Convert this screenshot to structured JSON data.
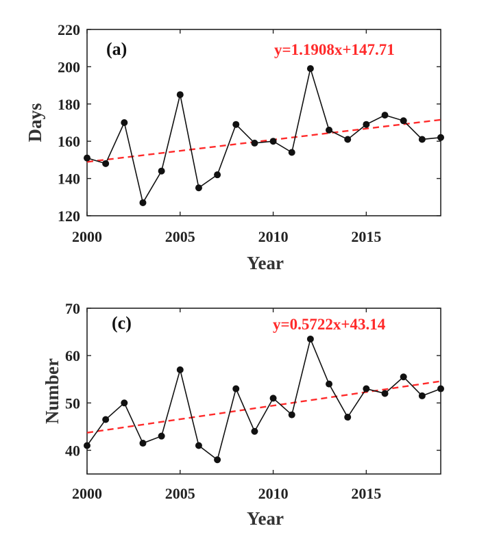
{
  "chart_data": [
    {
      "type": "line",
      "panel_label": "(a)",
      "xlabel": "Year",
      "ylabel": "Days",
      "xlim": [
        2000,
        2019
      ],
      "ylim": [
        120,
        220
      ],
      "xticks": [
        2000,
        2005,
        2010,
        2015
      ],
      "yticks": [
        120,
        140,
        160,
        180,
        200,
        220
      ],
      "series": [
        {
          "x": [
            2000,
            2001,
            2002,
            2003,
            2004,
            2005,
            2006,
            2007,
            2008,
            2009,
            2010,
            2011,
            2012,
            2013,
            2014,
            2015,
            2016,
            2017,
            2018,
            2019
          ],
          "y": [
            151,
            148,
            170,
            127,
            144,
            185,
            135,
            142,
            169,
            159,
            160,
            154,
            199,
            166,
            161,
            169,
            174,
            171,
            161,
            162
          ]
        }
      ],
      "trend": {
        "equation": "y=1.1908x+147.71",
        "slope": 1.1908,
        "intercept": 147.71,
        "color": "#ff2a2a"
      },
      "line_color": "#111111",
      "grid": false
    },
    {
      "type": "line",
      "panel_label": "(c)",
      "xlabel": "Year",
      "ylabel": "Number",
      "xlim": [
        2000,
        2019
      ],
      "ylim": [
        35,
        70
      ],
      "xticks": [
        2000,
        2005,
        2010,
        2015
      ],
      "yticks": [
        40,
        50,
        60,
        70
      ],
      "series": [
        {
          "x": [
            2000,
            2001,
            2002,
            2003,
            2004,
            2005,
            2006,
            2007,
            2008,
            2009,
            2010,
            2011,
            2012,
            2013,
            2014,
            2015,
            2016,
            2017,
            2018,
            2019
          ],
          "y": [
            41,
            46.5,
            50,
            41.5,
            43,
            57,
            41,
            38,
            53,
            44,
            51,
            47.5,
            63.5,
            54,
            47,
            53,
            52,
            55.5,
            51.5,
            53
          ]
        }
      ],
      "trend": {
        "equation": "y=0.5722x+43.14",
        "slope": 0.5722,
        "intercept": 43.14,
        "color": "#ff2a2a"
      },
      "line_color": "#111111",
      "grid": false
    }
  ]
}
